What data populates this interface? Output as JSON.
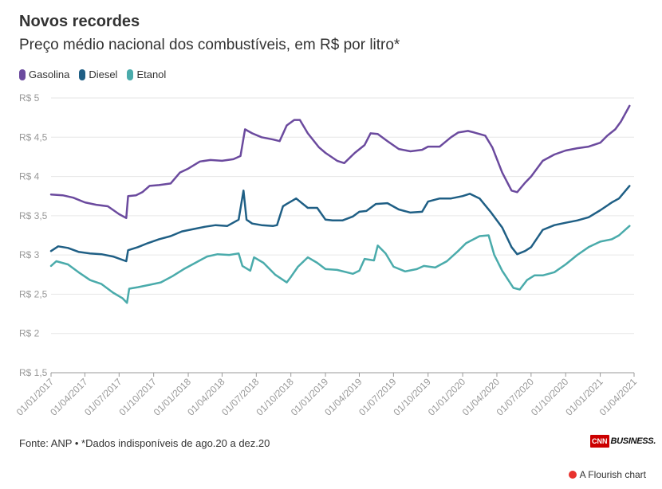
{
  "header": {
    "title": "Novos recordes",
    "subtitle": "Preço médio nacional dos combustíveis, em R$ por litro*"
  },
  "footer": {
    "source": "Fonte: ANP • *Dados indisponíveis de ago.20 a dez.20",
    "logo_brand": "CNN",
    "logo_text": "BUSINESS.",
    "credit": "A Flourish chart"
  },
  "chart_data": {
    "type": "line",
    "ylim": [
      1.5,
      5
    ],
    "xlim": [
      "2017-01-01",
      "2021-04-01"
    ],
    "y_ticks": [
      {
        "value": 1.5,
        "label": "R$ 1,5"
      },
      {
        "value": 2,
        "label": "R$ 2"
      },
      {
        "value": 2.5,
        "label": "R$ 2,5"
      },
      {
        "value": 3,
        "label": "R$ 3"
      },
      {
        "value": 3.5,
        "label": "R$ 3,5"
      },
      {
        "value": 4,
        "label": "R$ 4"
      },
      {
        "value": 4.5,
        "label": "R$ 4,5"
      },
      {
        "value": 5,
        "label": "R$ 5"
      }
    ],
    "x_ticks": [
      "01/01/2017",
      "01/04/2017",
      "01/07/2017",
      "01/10/2017",
      "01/01/2018",
      "01/04/2018",
      "01/07/2018",
      "01/10/2018",
      "01/01/2019",
      "01/04/2019",
      "01/07/2019",
      "01/10/2019",
      "01/01/2020",
      "01/04/2020",
      "01/07/2020",
      "01/10/2020",
      "01/01/2021",
      "01/04/2021"
    ],
    "grid": true,
    "legend_position": "top-left",
    "series": [
      {
        "name": "Gasolina",
        "color": "#6b4a9e",
        "points": [
          [
            "2017-01-01",
            3.77
          ],
          [
            "2017-02-01",
            3.76
          ],
          [
            "2017-03-01",
            3.73
          ],
          [
            "2017-04-01",
            3.67
          ],
          [
            "2017-05-01",
            3.64
          ],
          [
            "2017-06-01",
            3.62
          ],
          [
            "2017-07-01",
            3.52
          ],
          [
            "2017-07-20",
            3.47
          ],
          [
            "2017-07-25",
            3.75
          ],
          [
            "2017-08-15",
            3.76
          ],
          [
            "2017-09-01",
            3.8
          ],
          [
            "2017-09-20",
            3.88
          ],
          [
            "2017-10-15",
            3.89
          ],
          [
            "2017-11-15",
            3.91
          ],
          [
            "2017-12-10",
            4.05
          ],
          [
            "2018-01-01",
            4.1
          ],
          [
            "2018-02-01",
            4.19
          ],
          [
            "2018-03-01",
            4.21
          ],
          [
            "2018-04-01",
            4.2
          ],
          [
            "2018-05-01",
            4.22
          ],
          [
            "2018-05-20",
            4.26
          ],
          [
            "2018-06-01",
            4.6
          ],
          [
            "2018-06-20",
            4.55
          ],
          [
            "2018-07-15",
            4.5
          ],
          [
            "2018-08-15",
            4.47
          ],
          [
            "2018-09-01",
            4.45
          ],
          [
            "2018-09-20",
            4.65
          ],
          [
            "2018-10-10",
            4.72
          ],
          [
            "2018-10-25",
            4.72
          ],
          [
            "2018-11-15",
            4.55
          ],
          [
            "2018-12-15",
            4.37
          ],
          [
            "2019-01-01",
            4.3
          ],
          [
            "2019-02-01",
            4.2
          ],
          [
            "2019-02-20",
            4.17
          ],
          [
            "2019-03-20",
            4.3
          ],
          [
            "2019-04-15",
            4.4
          ],
          [
            "2019-05-01",
            4.55
          ],
          [
            "2019-05-20",
            4.54
          ],
          [
            "2019-06-15",
            4.45
          ],
          [
            "2019-07-15",
            4.35
          ],
          [
            "2019-08-15",
            4.32
          ],
          [
            "2019-09-15",
            4.34
          ],
          [
            "2019-10-01",
            4.38
          ],
          [
            "2019-11-01",
            4.38
          ],
          [
            "2019-12-01",
            4.5
          ],
          [
            "2019-12-20",
            4.56
          ],
          [
            "2020-01-15",
            4.58
          ],
          [
            "2020-02-01",
            4.56
          ],
          [
            "2020-03-01",
            4.52
          ],
          [
            "2020-03-20",
            4.37
          ],
          [
            "2020-04-15",
            4.05
          ],
          [
            "2020-05-10",
            3.82
          ],
          [
            "2020-05-25",
            3.8
          ],
          [
            "2020-06-15",
            3.92
          ],
          [
            "2020-07-01",
            4.0
          ],
          [
            "2020-08-01",
            4.2
          ],
          [
            "2020-09-01",
            4.28
          ],
          [
            "2020-10-01",
            4.33
          ],
          [
            "2020-11-01",
            4.36
          ],
          [
            "2020-12-01",
            4.38
          ],
          [
            "2021-01-01",
            4.43
          ],
          [
            "2021-01-20",
            4.52
          ],
          [
            "2021-02-10",
            4.6
          ],
          [
            "2021-02-25",
            4.7
          ],
          [
            "2021-03-20",
            4.9
          ]
        ]
      },
      {
        "name": "Diesel",
        "color": "#1f5f85",
        "points": [
          [
            "2017-01-01",
            3.05
          ],
          [
            "2017-01-20",
            3.11
          ],
          [
            "2017-02-15",
            3.09
          ],
          [
            "2017-03-15",
            3.04
          ],
          [
            "2017-04-15",
            3.02
          ],
          [
            "2017-05-15",
            3.01
          ],
          [
            "2017-06-15",
            2.98
          ],
          [
            "2017-07-20",
            2.92
          ],
          [
            "2017-07-25",
            3.06
          ],
          [
            "2017-08-20",
            3.1
          ],
          [
            "2017-09-15",
            3.15
          ],
          [
            "2017-10-15",
            3.2
          ],
          [
            "2017-11-15",
            3.24
          ],
          [
            "2017-12-15",
            3.3
          ],
          [
            "2018-01-15",
            3.33
          ],
          [
            "2018-02-15",
            3.36
          ],
          [
            "2018-03-15",
            3.38
          ],
          [
            "2018-04-15",
            3.37
          ],
          [
            "2018-05-15",
            3.45
          ],
          [
            "2018-05-28",
            3.82
          ],
          [
            "2018-06-05",
            3.45
          ],
          [
            "2018-06-20",
            3.4
          ],
          [
            "2018-07-15",
            3.38
          ],
          [
            "2018-08-15",
            3.37
          ],
          [
            "2018-08-25",
            3.38
          ],
          [
            "2018-09-10",
            3.62
          ],
          [
            "2018-09-20",
            3.65
          ],
          [
            "2018-10-15",
            3.72
          ],
          [
            "2018-11-15",
            3.6
          ],
          [
            "2018-12-10",
            3.6
          ],
          [
            "2019-01-01",
            3.45
          ],
          [
            "2019-01-20",
            3.44
          ],
          [
            "2019-02-15",
            3.44
          ],
          [
            "2019-03-15",
            3.49
          ],
          [
            "2019-04-01",
            3.55
          ],
          [
            "2019-04-20",
            3.56
          ],
          [
            "2019-05-15",
            3.65
          ],
          [
            "2019-06-15",
            3.66
          ],
          [
            "2019-07-15",
            3.58
          ],
          [
            "2019-08-15",
            3.54
          ],
          [
            "2019-09-15",
            3.55
          ],
          [
            "2019-10-01",
            3.68
          ],
          [
            "2019-11-01",
            3.72
          ],
          [
            "2019-12-01",
            3.72
          ],
          [
            "2020-01-01",
            3.75
          ],
          [
            "2020-01-20",
            3.78
          ],
          [
            "2020-02-15",
            3.72
          ],
          [
            "2020-03-15",
            3.55
          ],
          [
            "2020-04-15",
            3.35
          ],
          [
            "2020-05-10",
            3.1
          ],
          [
            "2020-05-25",
            3.01
          ],
          [
            "2020-06-15",
            3.05
          ],
          [
            "2020-07-01",
            3.1
          ],
          [
            "2020-08-01",
            3.32
          ],
          [
            "2020-09-01",
            3.38
          ],
          [
            "2020-10-01",
            3.41
          ],
          [
            "2020-11-01",
            3.44
          ],
          [
            "2020-12-01",
            3.48
          ],
          [
            "2021-01-01",
            3.57
          ],
          [
            "2021-02-01",
            3.67
          ],
          [
            "2021-02-20",
            3.72
          ],
          [
            "2021-03-20",
            3.88
          ]
        ]
      },
      {
        "name": "Etanol",
        "color": "#4aabab",
        "points": [
          [
            "2017-01-01",
            2.86
          ],
          [
            "2017-01-15",
            2.92
          ],
          [
            "2017-02-15",
            2.88
          ],
          [
            "2017-03-15",
            2.78
          ],
          [
            "2017-04-15",
            2.68
          ],
          [
            "2017-05-15",
            2.63
          ],
          [
            "2017-06-15",
            2.52
          ],
          [
            "2017-07-10",
            2.45
          ],
          [
            "2017-07-22",
            2.39
          ],
          [
            "2017-07-28",
            2.57
          ],
          [
            "2017-08-20",
            2.59
          ],
          [
            "2017-09-20",
            2.62
          ],
          [
            "2017-10-20",
            2.65
          ],
          [
            "2017-11-20",
            2.73
          ],
          [
            "2017-12-20",
            2.82
          ],
          [
            "2018-01-20",
            2.9
          ],
          [
            "2018-02-20",
            2.98
          ],
          [
            "2018-03-20",
            3.01
          ],
          [
            "2018-04-20",
            3.0
          ],
          [
            "2018-05-15",
            3.02
          ],
          [
            "2018-05-25",
            2.86
          ],
          [
            "2018-06-15",
            2.8
          ],
          [
            "2018-06-25",
            2.97
          ],
          [
            "2018-07-20",
            2.9
          ],
          [
            "2018-08-20",
            2.75
          ],
          [
            "2018-09-20",
            2.65
          ],
          [
            "2018-10-01",
            2.72
          ],
          [
            "2018-10-20",
            2.85
          ],
          [
            "2018-11-15",
            2.97
          ],
          [
            "2018-12-10",
            2.9
          ],
          [
            "2019-01-01",
            2.82
          ],
          [
            "2019-02-01",
            2.81
          ],
          [
            "2019-03-15",
            2.76
          ],
          [
            "2019-04-01",
            2.8
          ],
          [
            "2019-04-15",
            2.95
          ],
          [
            "2019-05-10",
            2.93
          ],
          [
            "2019-05-20",
            3.12
          ],
          [
            "2019-06-10",
            3.02
          ],
          [
            "2019-07-01",
            2.85
          ],
          [
            "2019-08-01",
            2.79
          ],
          [
            "2019-09-01",
            2.82
          ],
          [
            "2019-09-20",
            2.86
          ],
          [
            "2019-10-20",
            2.84
          ],
          [
            "2019-11-20",
            2.92
          ],
          [
            "2019-12-20",
            3.05
          ],
          [
            "2020-01-10",
            3.15
          ],
          [
            "2020-02-15",
            3.24
          ],
          [
            "2020-03-10",
            3.25
          ],
          [
            "2020-03-25",
            3.0
          ],
          [
            "2020-04-15",
            2.8
          ],
          [
            "2020-05-15",
            2.58
          ],
          [
            "2020-06-01",
            2.56
          ],
          [
            "2020-06-20",
            2.68
          ],
          [
            "2020-07-10",
            2.74
          ],
          [
            "2020-08-01",
            2.74
          ],
          [
            "2020-09-01",
            2.78
          ],
          [
            "2020-10-01",
            2.88
          ],
          [
            "2020-11-01",
            3.0
          ],
          [
            "2020-12-01",
            3.1
          ],
          [
            "2021-01-01",
            3.17
          ],
          [
            "2021-02-01",
            3.2
          ],
          [
            "2021-02-20",
            3.25
          ],
          [
            "2021-03-20",
            3.37
          ]
        ]
      }
    ]
  }
}
